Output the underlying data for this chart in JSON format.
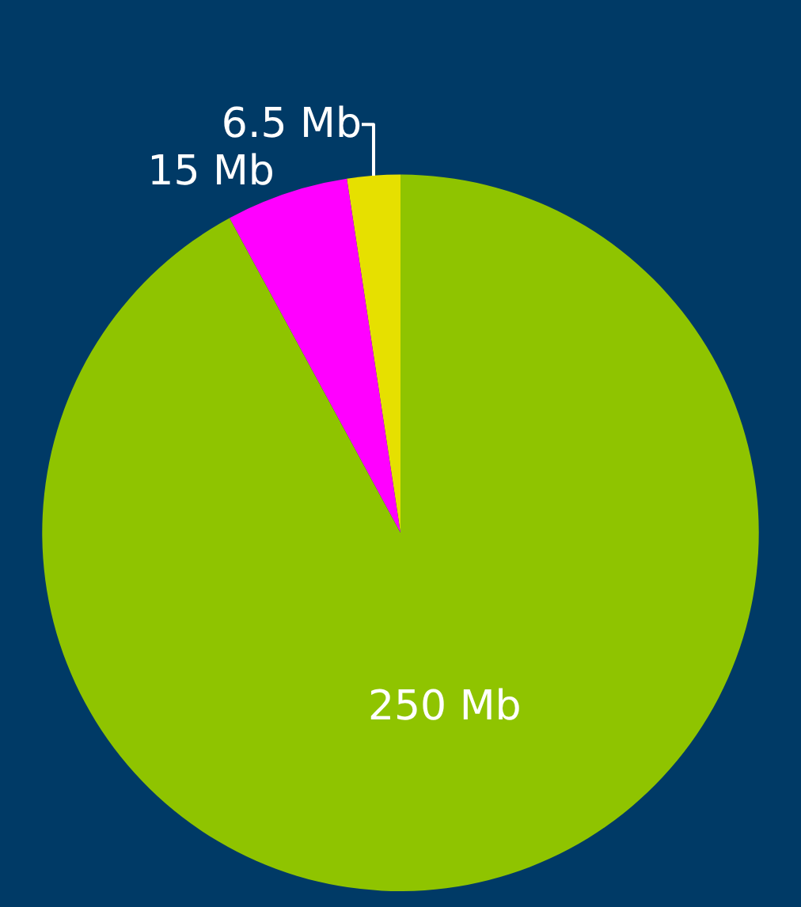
{
  "chart_data": {
    "type": "pie",
    "categories": [
      null,
      null,
      null
    ],
    "values": [
      6.5,
      15,
      250
    ],
    "colors": [
      "#e6e000",
      "#ff00ff",
      "#8fc400"
    ],
    "value_labels": [
      "6.5 Mb",
      "15 Mb",
      "250 Mb"
    ],
    "legend": false
  }
}
